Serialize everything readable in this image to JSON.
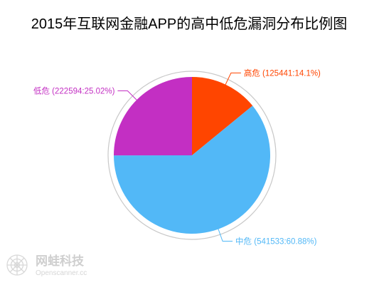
{
  "chart_data": {
    "type": "pie",
    "title": "2015年互联网金融APP的高中低危漏洞分布比例图",
    "slices": [
      {
        "name": "高危",
        "value": 125441,
        "percent": "14.1%",
        "label": "高危 (125441:14.1%)",
        "color": "#ff4500",
        "label_side": "right"
      },
      {
        "name": "中危",
        "value": 541533,
        "percent": "60.88%",
        "label": "中危 (541533:60.88%)",
        "color": "#52b8f7",
        "label_side": "right"
      },
      {
        "name": "低危",
        "value": 222594,
        "percent": "25.02%",
        "label": "低危 (222594:25.02%)",
        "color": "#c32fc3",
        "label_side": "left"
      }
    ],
    "start_angle_deg": 0,
    "direction": "clockwise",
    "legend": "none",
    "outer_ring": true
  },
  "watermark": {
    "name": "网蛙科技",
    "site": "Openscanner.cc"
  }
}
